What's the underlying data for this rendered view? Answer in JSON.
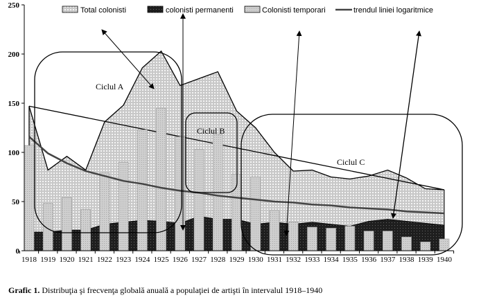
{
  "chart_data": {
    "type": "area+bar+line",
    "title": "",
    "xlabel": "",
    "ylabel": "",
    "ylim": [
      0,
      250
    ],
    "yticks": [
      0,
      50,
      100,
      150,
      200,
      250
    ],
    "grid": false,
    "legend_position": "top",
    "categories": [
      "1918",
      "1919",
      "1920",
      "1921",
      "1922",
      "1923",
      "1924",
      "1925",
      "1926",
      "1927",
      "1928",
      "1929",
      "1930",
      "1931",
      "1932",
      "1933",
      "1934",
      "1935",
      "1936",
      "1937",
      "1938",
      "1939",
      "1940"
    ],
    "series": [
      {
        "name": "Total colonisti",
        "kind": "area",
        "color": "#d0d0d0",
        "values": [
          147,
          82,
          96,
          82,
          131,
          148,
          186,
          203,
          168,
          175,
          182,
          142,
          125,
          100,
          81,
          82,
          75,
          73,
          76,
          82,
          74,
          63,
          62
        ]
      },
      {
        "name": "colonisti permanenti",
        "kind": "area",
        "color": "#222222",
        "values": [
          19,
          19,
          21,
          21,
          27,
          29,
          31,
          30,
          28,
          35,
          32,
          32,
          27,
          29,
          27,
          29,
          27,
          25,
          30,
          32,
          30,
          28,
          26
        ]
      },
      {
        "name": "Colonisti temporari",
        "kind": "bar",
        "color": "#c4c4c4",
        "values": [
          107,
          48,
          54,
          42,
          79,
          90,
          123,
          145,
          116,
          103,
          118,
          78,
          75,
          41,
          29,
          24,
          23,
          25,
          20,
          20,
          14,
          9,
          12
        ]
      },
      {
        "name": "trendul liniei logaritmice",
        "kind": "line",
        "color": "#444444",
        "values": [
          116,
          99,
          89,
          81,
          76,
          71,
          68,
          64,
          61,
          59,
          56,
          54,
          52,
          50,
          49,
          47,
          46,
          44,
          43,
          42,
          40,
          39,
          38
        ]
      }
    ],
    "annotations": [
      "Ciclul A",
      "Ciclul B",
      "Ciclul C"
    ]
  },
  "caption": {
    "label": "Grafic 1.",
    "text": " Distribuţia şi frecvenţa globală anuală a populaţiei de artişti în intervalul 1918–1940"
  }
}
